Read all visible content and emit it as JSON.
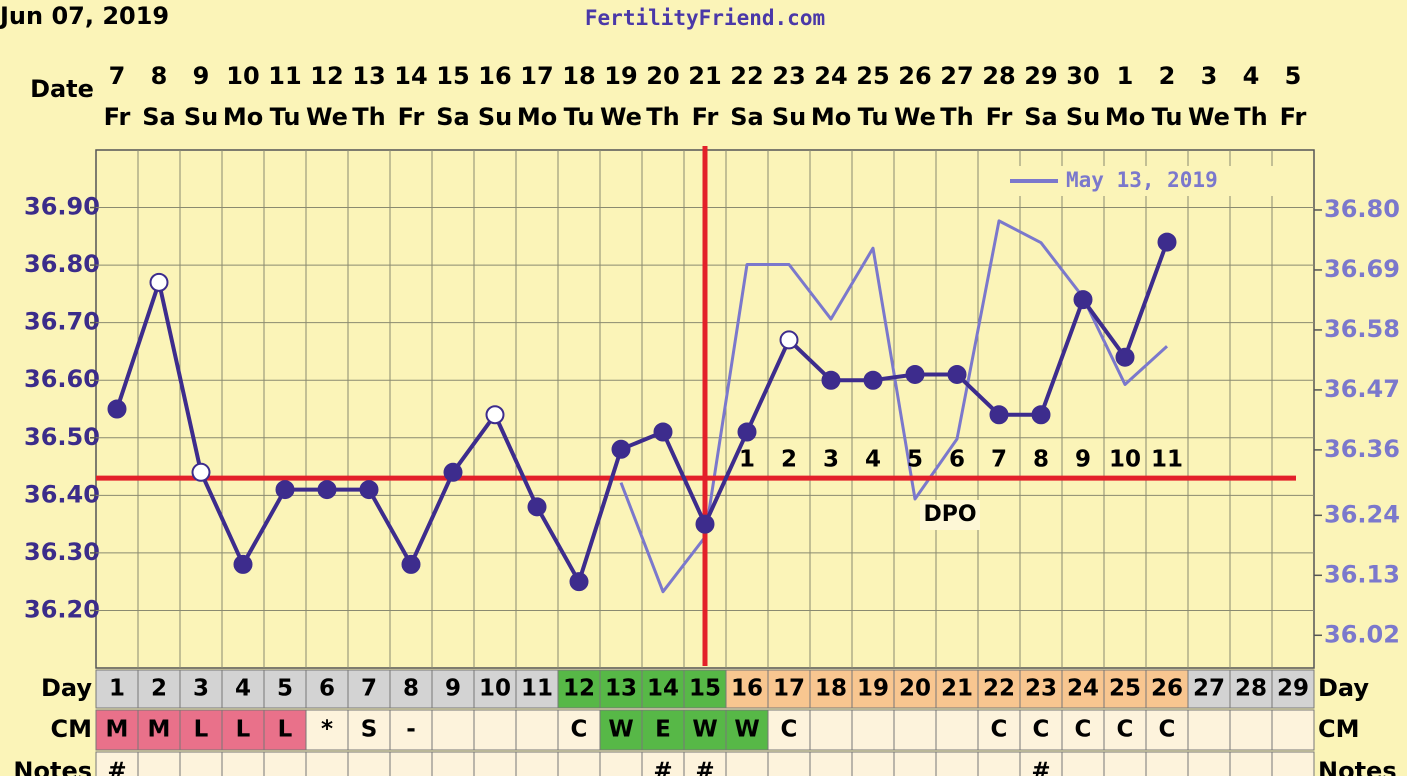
{
  "chart_data": {
    "type": "line",
    "title": "FertilityFriend.com",
    "chart_date": "Jun 07, 2019",
    "date_label": "Date",
    "categories": [
      "7",
      "8",
      "9",
      "10",
      "11",
      "12",
      "13",
      "14",
      "15",
      "16",
      "17",
      "18",
      "19",
      "20",
      "21",
      "22",
      "23",
      "24",
      "25",
      "26",
      "27",
      "28",
      "29",
      "30",
      "1",
      "2",
      "3",
      "4",
      "5"
    ],
    "weekdays": [
      "Fr",
      "Sa",
      "Su",
      "Mo",
      "Tu",
      "We",
      "Th",
      "Fr",
      "Sa",
      "Su",
      "Mo",
      "Tu",
      "We",
      "Th",
      "Fr",
      "Sa",
      "Su",
      "Mo",
      "Tu",
      "We",
      "Th",
      "Fr",
      "Sa",
      "Su",
      "Mo",
      "Tu",
      "We",
      "Th",
      "Fr"
    ],
    "ylim": [
      36.1,
      37.0
    ],
    "yticks": [
      {
        "value": 36.2,
        "label": "36.20"
      },
      {
        "value": 36.3,
        "label": "36.30"
      },
      {
        "value": 36.4,
        "label": "36.40"
      },
      {
        "value": 36.5,
        "label": "36.50"
      },
      {
        "value": 36.6,
        "label": "36.60"
      },
      {
        "value": 36.7,
        "label": "36.70"
      },
      {
        "value": 36.8,
        "label": "36.80"
      },
      {
        "value": 36.9,
        "label": "36.90"
      }
    ],
    "y2lim": [
      35.96,
      36.91
    ],
    "y2ticks": [
      36.02,
      36.13,
      36.24,
      36.36,
      36.47,
      36.58,
      36.69,
      {
        "value": 36.8,
        "label": "36.80"
      }
    ],
    "grid": true,
    "legend": "upper right",
    "series": [
      {
        "color": "#3d2c8d",
        "values": [
          36.55,
          36.77,
          36.44,
          36.28,
          36.41,
          36.41,
          36.41,
          36.28,
          36.44,
          36.54,
          36.38,
          36.25,
          36.48,
          36.51,
          36.35,
          36.51,
          36.67,
          36.6,
          36.6,
          36.61,
          36.61,
          36.54,
          36.54,
          36.74,
          36.64,
          36.84,
          null,
          null,
          null
        ],
        "hollow": [
          false,
          true,
          true,
          false,
          false,
          false,
          false,
          false,
          false,
          true,
          false,
          false,
          false,
          false,
          false,
          false,
          true,
          false,
          false,
          false,
          false,
          false,
          false,
          false,
          false,
          false,
          false,
          false,
          false
        ]
      },
      {
        "name": "May 13, 2019",
        "color": "#7b78cc",
        "axis": "y2",
        "values": [
          null,
          null,
          null,
          null,
          null,
          null,
          null,
          null,
          null,
          null,
          null,
          null,
          36.3,
          36.1,
          36.2,
          36.7,
          36.7,
          36.6,
          36.73,
          36.27,
          36.38,
          36.78,
          36.74,
          36.64,
          36.48,
          36.55,
          null,
          null,
          null
        ]
      }
    ],
    "coverline": 36.43,
    "coverline_color": "#e3202a",
    "ovulation_day": 15,
    "dpo": {
      "label": "DPO",
      "values": [
        1,
        2,
        3,
        4,
        5,
        6,
        7,
        8,
        9,
        10,
        11
      ]
    },
    "table": {
      "day_label": "Day",
      "days": [
        1,
        2,
        3,
        4,
        5,
        6,
        7,
        8,
        9,
        10,
        11,
        12,
        13,
        14,
        15,
        16,
        17,
        18,
        19,
        20,
        21,
        22,
        23,
        24,
        25,
        26,
        27,
        28,
        29
      ],
      "day_colors": [
        "#d3d3d3",
        "#d3d3d3",
        "#d3d3d3",
        "#d3d3d3",
        "#d3d3d3",
        "#d3d3d3",
        "#d3d3d3",
        "#d3d3d3",
        "#d3d3d3",
        "#d3d3d3",
        "#d3d3d3",
        "#57b847",
        "#57b847",
        "#57b847",
        "#57b847",
        "#f8c690",
        "#f8c690",
        "#f8c690",
        "#f8c690",
        "#f8c690",
        "#f8c690",
        "#f8c690",
        "#f8c690",
        "#f8c690",
        "#f8c690",
        "#f8c690",
        "#d3d3d3",
        "#d3d3d3",
        "#d3d3d3"
      ],
      "cm_label": "CM",
      "cm": [
        "M",
        "M",
        "L",
        "L",
        "L",
        "*",
        "S",
        "-",
        null,
        null,
        null,
        "C",
        "W",
        "E",
        "W",
        "W",
        "C",
        null,
        null,
        null,
        null,
        "C",
        "C",
        "C",
        "C",
        "C",
        null,
        null,
        null
      ],
      "cm_colors": [
        "#e9718a",
        "#e9718a",
        "#e9718a",
        "#e9718a",
        "#e9718a",
        "#fdf3dc",
        "#fdf3dc",
        "#fdf3dc",
        "#fdf3dc",
        "#fdf3dc",
        "#fdf3dc",
        "#fdf3dc",
        "#57b847",
        "#57b847",
        "#57b847",
        "#57b847",
        "#fdf3dc",
        "#fdf3dc",
        "#fdf3dc",
        "#fdf3dc",
        "#fdf3dc",
        "#fdf3dc",
        "#fdf3dc",
        "#fdf3dc",
        "#fdf3dc",
        "#fdf3dc",
        "#fdf3dc",
        "#fdf3dc",
        "#fdf3dc"
      ],
      "notes_label": "Notes",
      "notes": [
        "#",
        null,
        null,
        null,
        null,
        null,
        null,
        null,
        null,
        null,
        null,
        null,
        null,
        "#",
        "#",
        null,
        null,
        null,
        null,
        null,
        null,
        null,
        "#",
        null,
        null,
        null,
        null,
        null,
        null
      ]
    }
  }
}
